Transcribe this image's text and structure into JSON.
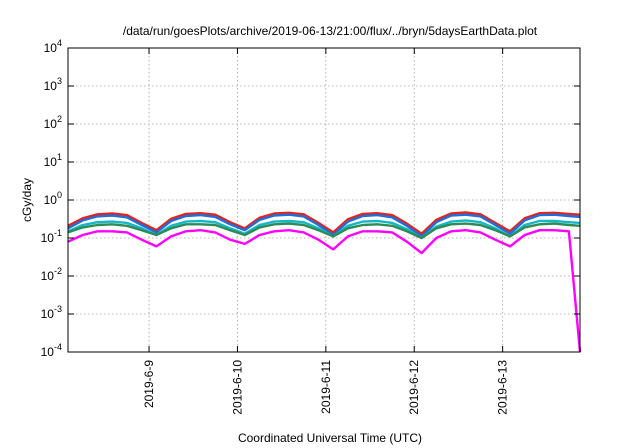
{
  "chart_data": {
    "type": "line",
    "title": "/data/run/goesPlots/archive/2019-06-13/21:00/flux/../bryn/5daysEarthData.plot",
    "xlabel": "Coordinated Universal Time (UTC)",
    "ylabel": "cGy/day",
    "yscale": "log",
    "ylim": [
      0.0001,
      10000
    ],
    "xlim": [
      "2019-06-08 02:00",
      "2019-06-13 21:00"
    ],
    "grid": true,
    "y_ticks": [
      {
        "base": "10",
        "exp": "-4",
        "value": 0.0001
      },
      {
        "base": "10",
        "exp": "-3",
        "value": 0.001
      },
      {
        "base": "10",
        "exp": "-2",
        "value": 0.01
      },
      {
        "base": "10",
        "exp": "-1",
        "value": 0.1
      },
      {
        "base": "10",
        "exp": "0",
        "value": 1
      },
      {
        "base": "10",
        "exp": "1",
        "value": 10
      },
      {
        "base": "10",
        "exp": "2",
        "value": 100
      },
      {
        "base": "10",
        "exp": "3",
        "value": 1000
      },
      {
        "base": "10",
        "exp": "4",
        "value": 10000
      }
    ],
    "x_ticks": [
      {
        "label": "2019-6-9",
        "value": "2019-06-09 00:00"
      },
      {
        "label": "2019-6-10",
        "value": "2019-06-10 00:00"
      },
      {
        "label": "2019-6-11",
        "value": "2019-06-11 00:00"
      },
      {
        "label": "2019-6-12",
        "value": "2019-06-12 00:00"
      },
      {
        "label": "2019-6-13",
        "value": "2019-06-13 00:00"
      }
    ],
    "x": [
      "2019-06-08 02:00",
      "2019-06-08 06:00",
      "2019-06-08 10:00",
      "2019-06-08 14:00",
      "2019-06-08 18:00",
      "2019-06-08 22:00",
      "2019-06-09 02:00",
      "2019-06-09 06:00",
      "2019-06-09 10:00",
      "2019-06-09 14:00",
      "2019-06-09 18:00",
      "2019-06-09 22:00",
      "2019-06-10 02:00",
      "2019-06-10 06:00",
      "2019-06-10 10:00",
      "2019-06-10 14:00",
      "2019-06-10 18:00",
      "2019-06-10 22:00",
      "2019-06-11 02:00",
      "2019-06-11 06:00",
      "2019-06-11 10:00",
      "2019-06-11 14:00",
      "2019-06-11 18:00",
      "2019-06-11 22:00",
      "2019-06-12 02:00",
      "2019-06-12 06:00",
      "2019-06-12 10:00",
      "2019-06-12 14:00",
      "2019-06-12 18:00",
      "2019-06-12 22:00",
      "2019-06-13 02:00",
      "2019-06-13 06:00",
      "2019-06-13 10:00",
      "2019-06-13 14:00",
      "2019-06-13 18:00",
      "2019-06-13 21:00"
    ],
    "series": [
      {
        "color": "#e8221b",
        "values": [
          0.21,
          0.33,
          0.42,
          0.44,
          0.4,
          0.25,
          0.16,
          0.32,
          0.43,
          0.45,
          0.41,
          0.26,
          0.18,
          0.34,
          0.44,
          0.46,
          0.42,
          0.25,
          0.14,
          0.31,
          0.43,
          0.45,
          0.4,
          0.24,
          0.13,
          0.3,
          0.44,
          0.47,
          0.42,
          0.25,
          0.15,
          0.33,
          0.45,
          0.46,
          0.43,
          0.41
        ]
      },
      {
        "color": "#1e6fd9",
        "values": [
          0.18,
          0.29,
          0.37,
          0.39,
          0.35,
          0.22,
          0.14,
          0.28,
          0.38,
          0.4,
          0.36,
          0.23,
          0.16,
          0.3,
          0.39,
          0.41,
          0.37,
          0.22,
          0.12,
          0.27,
          0.38,
          0.4,
          0.35,
          0.21,
          0.11,
          0.26,
          0.39,
          0.41,
          0.37,
          0.22,
          0.13,
          0.29,
          0.4,
          0.41,
          0.38,
          0.36
        ]
      },
      {
        "color": "#12b8c8",
        "values": [
          0.15,
          0.22,
          0.26,
          0.27,
          0.25,
          0.18,
          0.12,
          0.21,
          0.27,
          0.28,
          0.26,
          0.18,
          0.13,
          0.22,
          0.27,
          0.28,
          0.26,
          0.18,
          0.11,
          0.21,
          0.27,
          0.28,
          0.25,
          0.17,
          0.1,
          0.2,
          0.27,
          0.29,
          0.26,
          0.18,
          0.11,
          0.22,
          0.28,
          0.28,
          0.26,
          0.25
        ]
      },
      {
        "color": "#2e8b57",
        "values": [
          0.14,
          0.19,
          0.22,
          0.23,
          0.21,
          0.16,
          0.12,
          0.18,
          0.23,
          0.23,
          0.22,
          0.16,
          0.12,
          0.19,
          0.23,
          0.24,
          0.22,
          0.16,
          0.11,
          0.18,
          0.22,
          0.23,
          0.21,
          0.15,
          0.1,
          0.18,
          0.23,
          0.24,
          0.22,
          0.16,
          0.11,
          0.19,
          0.23,
          0.24,
          0.22,
          0.21
        ]
      },
      {
        "color": "#ff00ff",
        "values": [
          0.08,
          0.12,
          0.15,
          0.15,
          0.14,
          0.09,
          0.06,
          0.11,
          0.15,
          0.16,
          0.14,
          0.09,
          0.07,
          0.12,
          0.15,
          0.16,
          0.14,
          0.09,
          0.05,
          0.11,
          0.15,
          0.15,
          0.14,
          0.08,
          0.04,
          0.1,
          0.15,
          0.16,
          0.14,
          0.09,
          0.06,
          0.12,
          0.16,
          0.16,
          0.15,
          0.0001
        ]
      }
    ]
  }
}
